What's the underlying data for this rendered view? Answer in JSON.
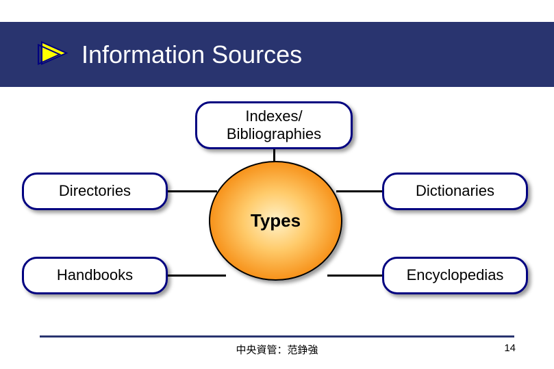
{
  "header": {
    "title": "Information Sources",
    "band_color": "#29346f",
    "title_color": "#ffffff",
    "title_fontsize": 36,
    "bullet_fill": "#ffff00",
    "bullet_outline": "#000080"
  },
  "diagram": {
    "center": {
      "label": "Types",
      "gradient_inner": "#fff2c9",
      "gradient_mid": "#f7941d",
      "gradient_outer": "#e06a1a",
      "border_color": "#000000",
      "font_weight": "bold",
      "fontsize": 26
    },
    "node_style": {
      "fill": "#ffffff",
      "border_color": "#000080",
      "border_width": 3,
      "border_radius": 22,
      "fontsize": 22,
      "shadow": "4px 4px 6px rgba(0,0,0,0.4)"
    },
    "nodes": {
      "top": "Indexes/\nBibliographies",
      "top_left": "Directories",
      "top_right": "Dictionaries",
      "bottom_left": "Handbooks",
      "bottom_right": "Encyclopedias"
    },
    "connector_color": "#000000"
  },
  "footer": {
    "line_color": "#29346f",
    "text": "中央資管：范錚強",
    "page_number": "14",
    "fontsize": 15
  }
}
